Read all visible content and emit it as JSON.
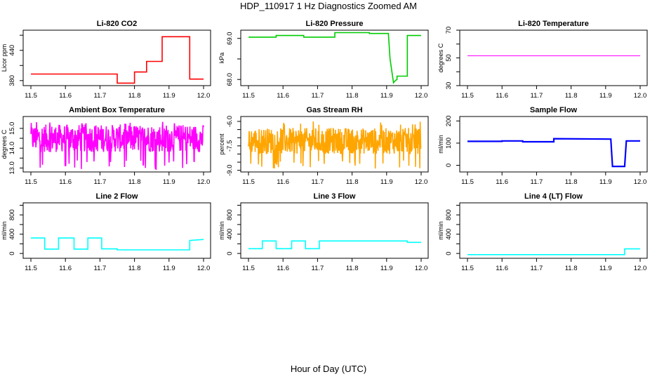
{
  "page": {
    "title": "HDP_110917  1 Hz Diagnostics Zoomed AM",
    "xlabel": "Hour of Day (UTC)"
  },
  "chart_data": [
    {
      "id": "co2",
      "type": "line",
      "title": "Li-820 CO2",
      "ylabel": "Licor ppm",
      "color": "#ff0000",
      "xlim": [
        11.5,
        12.0
      ],
      "ylim": [
        370,
        480
      ],
      "yticks": [
        380,
        410,
        440,
        470
      ],
      "ytick_labels": [
        "380",
        "",
        "440",
        ""
      ],
      "x": [
        11.5,
        11.75,
        11.75,
        11.8,
        11.8,
        11.835,
        11.835,
        11.88,
        11.88,
        11.96,
        11.96,
        12.0
      ],
      "y": [
        393,
        393,
        375,
        375,
        397,
        397,
        418,
        418,
        467,
        467,
        383,
        383
      ]
    },
    {
      "id": "pressure",
      "type": "line",
      "title": "Li-820 Pressure",
      "ylabel": "kPa",
      "color": "#00cc00",
      "xlim": [
        11.5,
        12.0
      ],
      "ylim": [
        67.85,
        69.2
      ],
      "yticks": [
        68.0,
        68.5,
        69.0
      ],
      "ytick_labels": [
        "68.0",
        "",
        "69.0"
      ],
      "x": [
        11.5,
        11.58,
        11.58,
        11.66,
        11.66,
        11.75,
        11.75,
        11.85,
        11.85,
        11.905,
        11.91,
        11.92,
        11.925,
        11.93,
        11.93,
        11.96,
        11.96,
        12.0
      ],
      "y": [
        69.03,
        69.03,
        69.07,
        69.07,
        69.03,
        69.03,
        69.14,
        69.14,
        69.12,
        69.12,
        68.5,
        67.92,
        67.97,
        68.0,
        68.08,
        68.08,
        69.07,
        69.07
      ]
    },
    {
      "id": "temperature",
      "type": "line",
      "title": "Li-820 Temperature",
      "ylabel": "degrees C",
      "color": "#ff00ff",
      "xlim": [
        11.5,
        12.0
      ],
      "ylim": [
        30,
        70
      ],
      "yticks": [
        30,
        40,
        50,
        60,
        70
      ],
      "ytick_labels": [
        "30",
        "",
        "50",
        "",
        "70"
      ],
      "x": [
        11.5,
        12.0
      ],
      "y": [
        51.5,
        51.5
      ]
    },
    {
      "id": "box_temp",
      "type": "line",
      "title": "Ambient Box Temperature",
      "ylabel": "degrees C",
      "color": "#ff00ff",
      "xlim": [
        11.5,
        12.0
      ],
      "ylim": [
        12.8,
        15.6
      ],
      "yticks": [
        13.0,
        13.5,
        14.0,
        14.5,
        15.0
      ],
      "ytick_labels": [
        "13.0",
        "",
        "14.0",
        "",
        "15.0"
      ],
      "noise": {
        "center": 14.5,
        "amplitude": 0.7,
        "spikes_to": 12.9,
        "spikes_up_to": 15.4
      }
    },
    {
      "id": "gas_rh",
      "type": "line",
      "title": "Gas Stream RH",
      "ylabel": "percent",
      "color": "#ffa500",
      "xlim": [
        11.5,
        12.0
      ],
      "ylim": [
        -9.1,
        -5.7
      ],
      "yticks": [
        -9.0,
        -8.5,
        -8.0,
        -7.5,
        -7.0,
        -6.5,
        -6.0
      ],
      "ytick_labels": [
        "-9.0",
        "",
        "",
        "-7.5",
        "",
        "",
        "-6.0"
      ],
      "noise": {
        "center": -7.2,
        "amplitude": 0.8,
        "spikes_to": -8.9,
        "spikes_up_to": -6.0
      }
    },
    {
      "id": "sample_flow",
      "type": "line",
      "title": "Sample Flow",
      "ylabel": "ml/min",
      "color": "#0000ff",
      "xlim": [
        11.5,
        12.0
      ],
      "ylim": [
        -30,
        220
      ],
      "yticks": [
        0,
        100,
        200
      ],
      "ytick_labels": [
        "0",
        "100",
        "200"
      ],
      "x": [
        11.5,
        11.6,
        11.6,
        11.66,
        11.66,
        11.75,
        11.75,
        11.915,
        11.92,
        11.955,
        11.96,
        12.0
      ],
      "y": [
        108,
        108,
        110,
        110,
        106,
        106,
        120,
        118,
        -5,
        -5,
        110,
        110
      ]
    },
    {
      "id": "line2_flow",
      "type": "line",
      "title": "Line 2 Flow",
      "ylabel": "ml/min",
      "color": "#00ffff",
      "xlim": [
        11.5,
        12.0
      ],
      "ylim": [
        -100,
        1050
      ],
      "yticks": [
        0,
        200,
        400,
        600,
        800,
        1000
      ],
      "ytick_labels": [
        "0",
        "",
        "400",
        "",
        "800",
        ""
      ],
      "x": [
        11.5,
        11.54,
        11.54,
        11.58,
        11.58,
        11.625,
        11.625,
        11.665,
        11.665,
        11.705,
        11.705,
        11.75,
        11.75,
        11.96,
        11.96,
        12.0
      ],
      "y": [
        320,
        320,
        90,
        90,
        320,
        320,
        90,
        90,
        320,
        320,
        95,
        95,
        75,
        75,
        270,
        290
      ]
    },
    {
      "id": "line3_flow",
      "type": "line",
      "title": "Line 3 Flow",
      "ylabel": "ml/min",
      "color": "#00ffff",
      "xlim": [
        11.5,
        12.0
      ],
      "ylim": [
        -100,
        1050
      ],
      "yticks": [
        0,
        200,
        400,
        600,
        800,
        1000
      ],
      "ytick_labels": [
        "0",
        "",
        "400",
        "",
        "800",
        ""
      ],
      "x": [
        11.5,
        11.54,
        11.54,
        11.58,
        11.58,
        11.625,
        11.625,
        11.665,
        11.665,
        11.705,
        11.705,
        11.96,
        11.96,
        12.0
      ],
      "y": [
        100,
        100,
        260,
        260,
        100,
        100,
        260,
        260,
        100,
        100,
        260,
        260,
        230,
        230
      ]
    },
    {
      "id": "line4_flow",
      "type": "line",
      "title": "Line 4 (LT) Flow",
      "ylabel": "ml/min",
      "color": "#00ffff",
      "xlim": [
        11.5,
        12.0
      ],
      "ylim": [
        -100,
        1050
      ],
      "yticks": [
        0,
        200,
        400,
        600,
        800,
        1000
      ],
      "ytick_labels": [
        "0",
        "",
        "400",
        "",
        "800",
        ""
      ],
      "x": [
        11.5,
        11.955,
        11.955,
        12.0
      ],
      "y": [
        -25,
        -25,
        95,
        95
      ]
    }
  ],
  "xticks": [
    11.5,
    11.6,
    11.7,
    11.8,
    11.9,
    12.0
  ],
  "xtick_labels": [
    "11.5",
    "11.6",
    "11.7",
    "11.8",
    "11.9",
    "12.0"
  ]
}
